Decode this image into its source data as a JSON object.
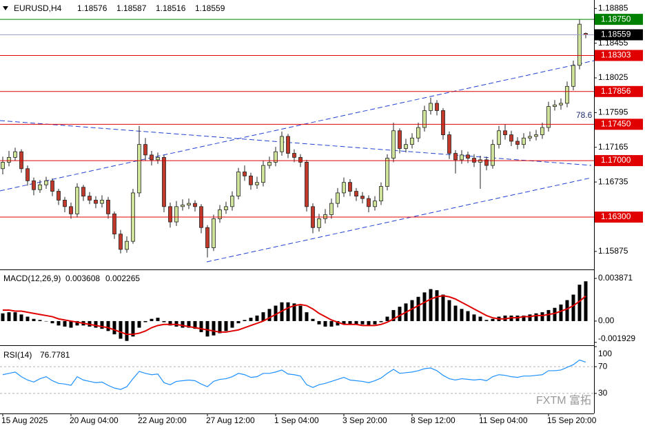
{
  "chart_data": [
    {
      "type": "candlestick",
      "symbol": "EURUSD,H4",
      "categories": [
        "15 Aug 2025",
        null,
        null,
        null,
        null,
        null,
        null,
        null,
        null,
        null,
        null,
        "20 Aug 04:00",
        null,
        null,
        null,
        null,
        null,
        null,
        null,
        null,
        null,
        null,
        "22 Aug 20:00",
        null,
        null,
        null,
        null,
        null,
        null,
        null,
        null,
        null,
        null,
        "27 Aug 12:00",
        null,
        null,
        null,
        null,
        null,
        null,
        null,
        null,
        null,
        null,
        "1 Sep 04:00",
        null,
        null,
        null,
        null,
        null,
        null,
        null,
        null,
        null,
        null,
        "3 Sep 20:00",
        null,
        null,
        null,
        null,
        null,
        null,
        null,
        null,
        null,
        null,
        "8 Sep 12:00",
        null,
        null,
        null,
        null,
        null,
        null,
        null,
        null,
        null,
        null,
        "11 Sep 04:00",
        null,
        null,
        null,
        null,
        null,
        null,
        null,
        null,
        null,
        null,
        "15 Sep 20:00",
        null,
        null,
        null,
        null,
        null,
        null
      ],
      "open": [
        1.169,
        1.1698,
        1.1704,
        1.1711,
        1.169,
        1.1675,
        1.1664,
        1.167,
        1.1675,
        1.1662,
        1.1651,
        1.1643,
        1.1634,
        1.1667,
        1.1656,
        1.1651,
        1.1647,
        1.1651,
        1.1634,
        1.1609,
        1.159,
        1.16,
        1.166,
        1.172,
        1.1707,
        1.1701,
        1.1704,
        1.1643,
        1.1624,
        1.1643,
        1.1645,
        1.1647,
        1.1643,
        1.1617,
        1.1592,
        1.1628,
        1.1639,
        1.1643,
        1.1656,
        1.1686,
        1.1681,
        1.167,
        1.1673,
        1.1694,
        1.1698,
        1.1711,
        1.173,
        1.1709,
        1.1704,
        1.1698,
        1.1643,
        1.1617,
        1.1628,
        1.1633,
        1.1647,
        1.166,
        1.1673,
        1.1662,
        1.1656,
        1.1653,
        1.1643,
        1.165,
        1.1668,
        1.1703,
        1.1737,
        1.1715,
        1.172,
        1.1728,
        1.1741,
        1.1762,
        1.1771,
        1.1762,
        1.1732,
        1.1709,
        1.1701,
        1.1707,
        1.1703,
        1.1698,
        1.1701,
        1.1694,
        1.172,
        1.1737,
        1.1732,
        1.1724,
        1.172,
        1.1728,
        1.173,
        1.1732,
        1.1741,
        1.1767,
        1.1769,
        1.1771,
        1.1792,
        1.1818,
        1.18576
      ],
      "high": [
        1.1705,
        1.1712,
        1.1716,
        1.1714,
        1.1694,
        1.1679,
        1.1676,
        1.168,
        1.1678,
        1.1665,
        1.1655,
        1.1648,
        1.1672,
        1.167,
        1.1661,
        1.1656,
        1.1657,
        1.1655,
        1.1637,
        1.1614,
        1.1606,
        1.1665,
        1.1743,
        1.1728,
        1.1712,
        1.171,
        1.1707,
        1.1648,
        1.165,
        1.1652,
        1.1653,
        1.1651,
        1.1646,
        1.162,
        1.1633,
        1.1645,
        1.1649,
        1.1662,
        1.1691,
        1.1694,
        1.1685,
        1.168,
        1.17,
        1.1705,
        1.1717,
        1.1736,
        1.1733,
        1.1714,
        1.1708,
        1.1701,
        1.1647,
        1.1634,
        1.164,
        1.1653,
        1.1666,
        1.1679,
        1.1677,
        1.1666,
        1.1661,
        1.1657,
        1.1656,
        1.1673,
        1.1708,
        1.1747,
        1.174,
        1.1727,
        1.1734,
        1.1747,
        1.1768,
        1.1778,
        1.1775,
        1.1765,
        1.1736,
        1.1713,
        1.1713,
        1.1711,
        1.1708,
        1.1706,
        1.1705,
        1.1726,
        1.1743,
        1.1745,
        1.1737,
        1.1729,
        1.1734,
        1.1736,
        1.1738,
        1.1747,
        1.1773,
        1.1775,
        1.1777,
        1.1798,
        1.1824,
        1.1875,
        1.18587
      ],
      "low": [
        1.1683,
        1.1693,
        1.17,
        1.1685,
        1.1669,
        1.1657,
        1.166,
        1.1665,
        1.1656,
        1.1645,
        1.1636,
        1.1628,
        1.163,
        1.165,
        1.1646,
        1.1641,
        1.1642,
        1.1628,
        1.1603,
        1.1585,
        1.1586,
        1.1597,
        1.1655,
        1.17,
        1.1694,
        1.1696,
        1.1636,
        1.1617,
        1.1619,
        1.1638,
        1.164,
        1.1637,
        1.161,
        1.158,
        1.1588,
        1.1623,
        1.1634,
        1.1638,
        1.1652,
        1.1675,
        1.1664,
        1.1665,
        1.1668,
        1.169,
        1.1693,
        1.1706,
        1.1703,
        1.1698,
        1.1692,
        1.1637,
        1.161,
        1.1612,
        1.1622,
        1.1628,
        1.1642,
        1.1655,
        1.1656,
        1.165,
        1.1647,
        1.1636,
        1.1638,
        1.1645,
        1.1663,
        1.1698,
        1.1709,
        1.171,
        1.1715,
        1.1723,
        1.1736,
        1.1757,
        1.1756,
        1.1726,
        1.1702,
        1.1684,
        1.1696,
        1.1697,
        1.1692,
        1.1665,
        1.1688,
        1.169,
        1.1715,
        1.1726,
        1.1718,
        1.1714,
        1.1715,
        1.1724,
        1.1725,
        1.1727,
        1.1736,
        1.1762,
        1.1763,
        1.1766,
        1.1787,
        1.1813,
        1.18516
      ],
      "close": [
        1.1698,
        1.1704,
        1.1711,
        1.169,
        1.1675,
        1.1664,
        1.167,
        1.1675,
        1.1662,
        1.1651,
        1.1643,
        1.1634,
        1.1667,
        1.1656,
        1.1651,
        1.1647,
        1.1651,
        1.1634,
        1.1609,
        1.159,
        1.16,
        1.166,
        1.172,
        1.1707,
        1.1701,
        1.1704,
        1.1643,
        1.1624,
        1.1643,
        1.1645,
        1.1647,
        1.1643,
        1.1617,
        1.1592,
        1.1628,
        1.1639,
        1.1643,
        1.1656,
        1.1686,
        1.1681,
        1.167,
        1.1673,
        1.1694,
        1.1698,
        1.1711,
        1.173,
        1.1709,
        1.1704,
        1.1698,
        1.1643,
        1.1617,
        1.1628,
        1.1633,
        1.1647,
        1.166,
        1.1673,
        1.1662,
        1.1656,
        1.1653,
        1.1643,
        1.165,
        1.1668,
        1.1703,
        1.1737,
        1.1715,
        1.172,
        1.1728,
        1.1741,
        1.1762,
        1.1771,
        1.1762,
        1.1732,
        1.1709,
        1.1701,
        1.1707,
        1.1703,
        1.1698,
        1.1701,
        1.1694,
        1.172,
        1.1737,
        1.1732,
        1.1724,
        1.172,
        1.1728,
        1.173,
        1.1732,
        1.1741,
        1.1767,
        1.1769,
        1.1771,
        1.1792,
        1.1818,
        1.1869,
        1.18559
      ],
      "up_color": "#cfe39a",
      "down_color": "#c0392b",
      "outline_color": "#222222",
      "ylim": [
        1.1566,
        1.1899
      ],
      "yticks": [
        1.18885,
        1.18455,
        1.18025,
        1.17595,
        1.17165,
        1.16735,
        1.15875
      ],
      "levels": [
        {
          "value": 1.1875,
          "label": "1.18750",
          "color": "#008000"
        },
        {
          "value": 1.18303,
          "color": "#e00000"
        },
        {
          "value": 1.17856,
          "color": "#e00000"
        },
        {
          "value": 1.1745,
          "label": "1.17450",
          "color": "#e00000"
        },
        {
          "value": 1.17,
          "label": "1.17000",
          "color": "#e00000"
        },
        {
          "value": 1.163,
          "label": "1.16300",
          "color": "#e00000"
        }
      ],
      "current_price_color": "#9aa0c8",
      "annotation": "78.6",
      "watermark": "FXTM 富拓"
    },
    {
      "type": "macd",
      "title": "MACD(12,26,9)",
      "histogram": [
        0.0007,
        0.0008,
        0.0008,
        0.0006,
        0.0004,
        0.0002,
        0.0001,
        0.0,
        -0.0002,
        -0.0004,
        -0.0005,
        -0.0006,
        -0.0004,
        -0.0004,
        -0.0005,
        -0.0006,
        -0.0007,
        -0.0009,
        -0.0012,
        -0.0016,
        -0.0018,
        -0.0014,
        -0.0006,
        -0.0001,
        0.0002,
        0.0003,
        -0.0001,
        -0.0004,
        -0.0005,
        -0.0006,
        -0.0006,
        -0.0007,
        -0.001,
        -0.0014,
        -0.0013,
        -0.0011,
        -0.0009,
        -0.0006,
        -0.0002,
        0.0001,
        0.0003,
        0.0005,
        0.0008,
        0.0011,
        0.0014,
        0.0017,
        0.0017,
        0.0016,
        0.0014,
        0.0008,
        0.0002,
        -0.0003,
        -0.0005,
        -0.0005,
        -0.0004,
        -0.0003,
        -0.0003,
        -0.0003,
        -0.0003,
        -0.0004,
        -0.0003,
        -0.0001,
        0.0004,
        0.001,
        0.0013,
        0.0016,
        0.0019,
        0.0022,
        0.0026,
        0.0029,
        0.0028,
        0.0024,
        0.0019,
        0.0014,
        0.0011,
        0.0009,
        0.0006,
        0.0004,
        0.0001,
        0.0002,
        0.0004,
        0.0005,
        0.0005,
        0.0005,
        0.0005,
        0.0006,
        0.0007,
        0.0008,
        0.001,
        0.0012,
        0.0015,
        0.0019,
        0.0024,
        0.0033,
        0.003608
      ],
      "signal": [
        0.001,
        0.001,
        0.0009,
        0.0009,
        0.0008,
        0.0007,
        0.0006,
        0.0005,
        0.0004,
        0.0002,
        0.0001,
        0.0,
        -0.0001,
        -0.0002,
        -0.0003,
        -0.0004,
        -0.0005,
        -0.0006,
        -0.0008,
        -0.001,
        -0.0012,
        -0.0012,
        -0.0011,
        -0.0009,
        -0.0006,
        -0.0004,
        -0.0003,
        -0.0003,
        -0.0003,
        -0.0004,
        -0.0005,
        -0.0006,
        -0.0007,
        -0.0008,
        -0.0009,
        -0.001,
        -0.001,
        -0.0009,
        -0.0008,
        -0.0006,
        -0.0004,
        -0.0002,
        0.0,
        0.0003,
        0.0006,
        0.0009,
        0.0012,
        0.0014,
        0.0015,
        0.0014,
        0.0011,
        0.0007,
        0.0004,
        0.0001,
        -0.0001,
        -0.0003,
        -0.0003,
        -0.0003,
        -0.0004,
        -0.0004,
        -0.0004,
        -0.0003,
        -0.0001,
        0.0002,
        0.0005,
        0.0008,
        0.0011,
        0.0014,
        0.0017,
        0.002,
        0.0022,
        0.0023,
        0.0022,
        0.002,
        0.0017,
        0.0014,
        0.0011,
        0.0008,
        0.0005,
        0.0003,
        0.0002,
        0.0002,
        0.0003,
        0.0003,
        0.0004,
        0.0004,
        0.0005,
        0.0005,
        0.0006,
        0.0007,
        0.0009,
        0.0011,
        0.0014,
        0.0018,
        0.002265
      ],
      "histogram_color": "#000000",
      "signal_color": "#e00000",
      "ylim": [
        -0.00213,
        0.00456
      ],
      "yticks": [
        0.003871,
        {
          "value": 0,
          "label": "0.00"
        },
        -0.001929
      ]
    },
    {
      "type": "line",
      "title": "RSI(14)",
      "values": [
        58,
        60,
        62,
        55,
        50,
        47,
        52,
        55,
        49,
        45,
        44,
        42,
        55,
        50,
        48,
        46,
        47,
        42,
        38,
        36,
        40,
        52,
        63,
        60,
        58,
        59,
        46,
        43,
        48,
        49,
        50,
        49,
        44,
        40,
        48,
        51,
        52,
        55,
        60,
        58,
        54,
        55,
        60,
        60,
        62,
        65,
        59,
        58,
        56,
        43,
        39,
        43,
        45,
        48,
        51,
        54,
        50,
        49,
        48,
        46,
        49,
        53,
        60,
        66,
        60,
        61,
        62,
        64,
        67,
        68,
        64,
        57,
        52,
        50,
        52,
        51,
        50,
        51,
        49,
        55,
        58,
        57,
        55,
        54,
        56,
        56,
        57,
        58,
        64,
        64,
        65,
        69,
        73,
        80,
        76.7781
      ],
      "color": "#1e90ff",
      "ylim": [
        0,
        100
      ],
      "yticks": [
        100,
        70,
        30
      ],
      "grid": true
    }
  ]
}
